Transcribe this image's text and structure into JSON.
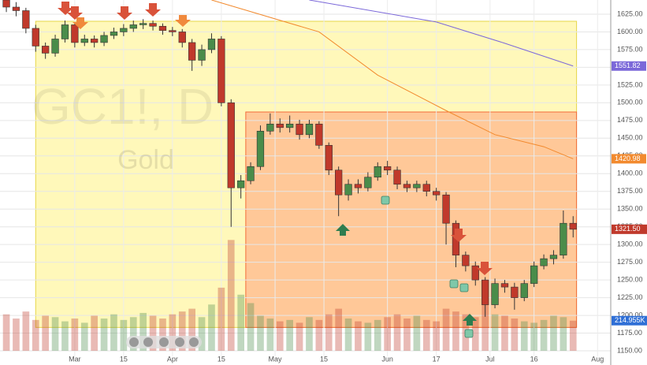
{
  "chart_data": {
    "type": "candlestick",
    "title": "GC1!, D",
    "subtitle": "Gold",
    "x": [
      -14,
      -12,
      -10,
      -8,
      -6,
      -4,
      -2,
      0,
      2,
      4,
      6,
      8,
      10,
      12,
      14,
      16,
      18,
      20,
      22,
      24,
      26,
      28,
      30,
      32,
      34,
      36,
      38,
      40,
      42,
      44,
      46,
      48,
      50,
      52,
      54,
      56,
      58,
      60,
      62,
      64,
      66,
      68,
      70,
      72,
      74,
      76,
      78,
      80,
      82,
      84,
      86,
      88,
      90,
      92,
      94,
      96,
      98,
      100,
      102
    ],
    "open": [
      1645,
      1635,
      1630,
      1605,
      1580,
      1570,
      1590,
      1610,
      1585,
      1590,
      1585,
      1595,
      1600,
      1605,
      1610,
      1612,
      1608,
      1602,
      1600,
      1585,
      1560,
      1575,
      1590,
      1500,
      1380,
      1390,
      1410,
      1460,
      1470,
      1465,
      1470,
      1455,
      1470,
      1440,
      1405,
      1370,
      1385,
      1380,
      1395,
      1410,
      1405,
      1385,
      1380,
      1385,
      1375,
      1370,
      1330,
      1285,
      1270,
      1250,
      1215,
      1245,
      1240,
      1225,
      1245,
      1270,
      1280,
      1285,
      1330
    ],
    "high": [
      1650,
      1642,
      1634,
      1610,
      1585,
      1596,
      1616,
      1614,
      1596,
      1595,
      1600,
      1606,
      1611,
      1616,
      1618,
      1616,
      1612,
      1607,
      1604,
      1590,
      1582,
      1598,
      1594,
      1505,
      1398,
      1416,
      1468,
      1485,
      1478,
      1482,
      1476,
      1476,
      1474,
      1444,
      1410,
      1392,
      1392,
      1402,
      1416,
      1418,
      1410,
      1390,
      1390,
      1390,
      1380,
      1374,
      1334,
      1290,
      1276,
      1254,
      1252,
      1250,
      1246,
      1250,
      1276,
      1286,
      1292,
      1348,
      1340
    ],
    "low": [
      1628,
      1622,
      1598,
      1572,
      1562,
      1565,
      1585,
      1578,
      1580,
      1578,
      1580,
      1590,
      1594,
      1600,
      1604,
      1602,
      1596,
      1594,
      1578,
      1545,
      1552,
      1570,
      1495,
      1325,
      1365,
      1385,
      1405,
      1455,
      1458,
      1458,
      1448,
      1450,
      1435,
      1398,
      1340,
      1362,
      1372,
      1375,
      1390,
      1398,
      1378,
      1374,
      1374,
      1368,
      1362,
      1300,
      1268,
      1262,
      1242,
      1198,
      1210,
      1232,
      1208,
      1220,
      1240,
      1265,
      1272,
      1280,
      1310
    ],
    "close": [
      1635,
      1630,
      1605,
      1580,
      1570,
      1590,
      1610,
      1585,
      1590,
      1585,
      1595,
      1600,
      1605,
      1610,
      1612,
      1608,
      1602,
      1600,
      1585,
      1560,
      1575,
      1590,
      1500,
      1380,
      1390,
      1410,
      1460,
      1470,
      1465,
      1470,
      1455,
      1470,
      1440,
      1405,
      1370,
      1385,
      1380,
      1395,
      1410,
      1405,
      1385,
      1380,
      1385,
      1375,
      1370,
      1330,
      1285,
      1270,
      1250,
      1215,
      1245,
      1240,
      1225,
      1245,
      1270,
      1280,
      1285,
      1330,
      1321.5
    ],
    "last_label": "1321.50",
    "up_color": "#4a8c4a",
    "down_color": "#c0392b",
    "volume": {
      "values": [
        260,
        230,
        280,
        220,
        250,
        240,
        210,
        230,
        200,
        250,
        230,
        260,
        220,
        240,
        270,
        250,
        230,
        260,
        280,
        300,
        240,
        330,
        450,
        790,
        400,
        340,
        250,
        230,
        210,
        220,
        200,
        240,
        220,
        260,
        300,
        230,
        210,
        200,
        220,
        240,
        260,
        230,
        250,
        220,
        210,
        300,
        280,
        260,
        240,
        330,
        260,
        250,
        230,
        210,
        200,
        220,
        250,
        240,
        214.955
      ],
      "last_label": "214.955K",
      "ylim": [
        0,
        2500
      ],
      "label_color": "#2f6fd6"
    },
    "ma": [
      {
        "color": "#7b68d9",
        "x": [
          48,
          74,
          88,
          102
        ],
        "values": [
          1645,
          1614,
          1584,
          1551.82
        ],
        "last_label": "1551.82"
      },
      {
        "color": "#f28a2e",
        "x": [
          28,
          50,
          62,
          76,
          86,
          96,
          102
        ],
        "values": [
          1645,
          1600,
          1539,
          1489,
          1455,
          1438,
          1420.98
        ],
        "last_label": "1420.98"
      }
    ],
    "zones": [
      {
        "x": [
          -8,
          102.7
        ],
        "y": [
          1615,
          1183
        ],
        "color": "#fff59d",
        "stroke": "#e6d64a"
      },
      {
        "x": [
          35,
          102.7
        ],
        "y": [
          1487,
          1183
        ],
        "color": "#ffb38a",
        "stroke": "#f26b3a"
      }
    ],
    "xlim": [
      -15.3,
      109.7
    ],
    "ylim": [
      1130,
      1645
    ],
    "xticks": [
      {
        "value": 0,
        "label": "Mar"
      },
      {
        "value": 10,
        "label": "15"
      },
      {
        "value": 20,
        "label": "Apr"
      },
      {
        "value": 30,
        "label": "15"
      },
      {
        "value": 41,
        "label": "May"
      },
      {
        "value": 51,
        "label": "15"
      },
      {
        "value": 64,
        "label": "Jun"
      },
      {
        "value": 74,
        "label": "17"
      },
      {
        "value": 85,
        "label": "Jul"
      },
      {
        "value": 94,
        "label": "16"
      },
      {
        "value": 107,
        "label": "Aug"
      }
    ],
    "yticks": [
      {
        "value": 1150,
        "label": "1150.00"
      },
      {
        "value": 1175,
        "label": "1175.00"
      },
      {
        "value": 1200,
        "label": "1200.00"
      },
      {
        "value": 1225,
        "label": "1225.00"
      },
      {
        "value": 1250,
        "label": "1250.00"
      },
      {
        "value": 1275,
        "label": "1275.00"
      },
      {
        "value": 1300,
        "label": "1300.00"
      },
      {
        "value": 1325,
        "label": "1325.00"
      },
      {
        "value": 1350,
        "label": "1350.00"
      },
      {
        "value": 1375,
        "label": "1375.00"
      },
      {
        "value": 1400,
        "label": "1400.00"
      },
      {
        "value": 1425,
        "label": "1425.00"
      },
      {
        "value": 1450,
        "label": "1450.00"
      },
      {
        "value": 1475,
        "label": "1475.00"
      },
      {
        "value": 1500,
        "label": "1500.00"
      },
      {
        "value": 1525,
        "label": "1525.00"
      },
      {
        "value": 1550,
        "label": "1550.00"
      },
      {
        "value": 1575,
        "label": "1575.00"
      },
      {
        "value": 1600,
        "label": "1600.00"
      },
      {
        "value": 1625,
        "label": "1625.00"
      }
    ],
    "grid": true
  }
}
